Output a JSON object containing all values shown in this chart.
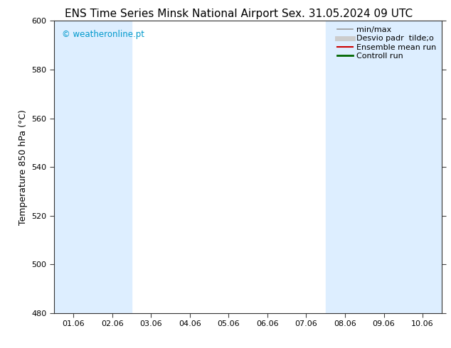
{
  "title_left": "ENS Time Series Minsk National Airport",
  "title_right": "Sex. 31.05.2024 09 UTC",
  "ylabel": "Temperature 850 hPa (°C)",
  "ylim": [
    480,
    600
  ],
  "yticks": [
    480,
    500,
    520,
    540,
    560,
    580,
    600
  ],
  "xtick_labels": [
    "01.06",
    "02.06",
    "03.06",
    "04.06",
    "05.06",
    "06.06",
    "07.06",
    "08.06",
    "09.06",
    "10.06"
  ],
  "shaded_columns": [
    0,
    1,
    7,
    8,
    9
  ],
  "shade_color": "#ddeeff",
  "background_color": "#ffffff",
  "legend_entries": [
    {
      "label": "min/max",
      "color": "#999999",
      "lw": 1.2,
      "style": "solid"
    },
    {
      "label": "Desvio padr  tilde;o",
      "color": "#cccccc",
      "lw": 5,
      "style": "solid"
    },
    {
      "label": "Ensemble mean run",
      "color": "#cc0000",
      "lw": 1.5,
      "style": "solid"
    },
    {
      "label": "Controll run",
      "color": "#006600",
      "lw": 2,
      "style": "solid"
    }
  ],
  "watermark_text": "© weatheronline.pt",
  "watermark_color": "#0099cc",
  "title_fontsize": 11,
  "axis_fontsize": 9,
  "tick_fontsize": 8,
  "legend_fontsize": 8
}
